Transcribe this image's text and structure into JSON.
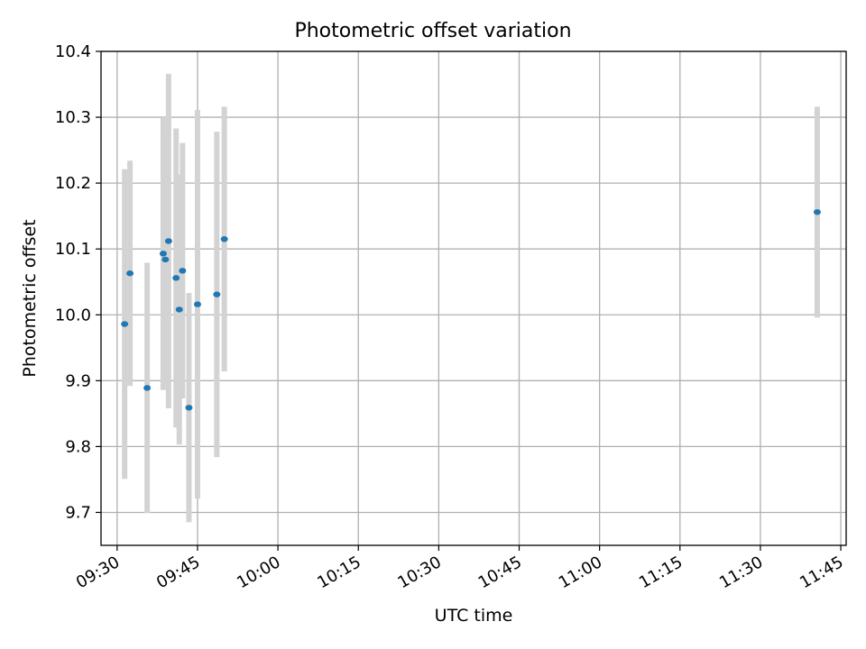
{
  "chart_data": {
    "type": "scatter",
    "title": "Photometric offset variation",
    "xlabel": "UTC time",
    "ylabel": "Photometric offset",
    "x_ticks": [
      "09:30",
      "09:45",
      "10:00",
      "10:15",
      "10:30",
      "10:45",
      "11:00",
      "11:15",
      "11:30",
      "11:45"
    ],
    "y_ticks": [
      "9.7",
      "9.8",
      "9.9",
      "10.0",
      "10.1",
      "10.2",
      "10.3",
      "10.4"
    ],
    "xlim": [
      "09:27",
      "11:46"
    ],
    "ylim": [
      9.65,
      10.4
    ],
    "grid": true,
    "colors": {
      "points": "#1f77b4",
      "errorbars": "#d3d3d3",
      "grid": "#b0b0b0"
    },
    "series": [
      {
        "points": [
          {
            "x": "09:31:24",
            "y": 9.986,
            "yerr": 0.235
          },
          {
            "x": "09:32:24",
            "y": 10.063,
            "yerr": 0.171
          },
          {
            "x": "09:35:36",
            "y": 9.889,
            "yerr": 0.19
          },
          {
            "x": "09:38:36",
            "y": 10.093,
            "yerr": 0.207
          },
          {
            "x": "09:39:00",
            "y": 10.084,
            "yerr": 0.19
          },
          {
            "x": "09:39:36",
            "y": 10.112,
            "yerr": 0.254
          },
          {
            "x": "09:41:00",
            "y": 10.056,
            "yerr": 0.227
          },
          {
            "x": "09:41:36",
            "y": 10.008,
            "yerr": 0.205
          },
          {
            "x": "09:42:12",
            "y": 10.067,
            "yerr": 0.194
          },
          {
            "x": "09:43:24",
            "y": 9.859,
            "yerr": 0.174
          },
          {
            "x": "09:45:00",
            "y": 10.016,
            "yerr": 0.295
          },
          {
            "x": "09:48:36",
            "y": 10.031,
            "yerr": 0.247
          },
          {
            "x": "09:50:00",
            "y": 10.115,
            "yerr": 0.201
          },
          {
            "x": "11:40:36",
            "y": 10.156,
            "yerr": 0.16
          }
        ]
      }
    ]
  }
}
